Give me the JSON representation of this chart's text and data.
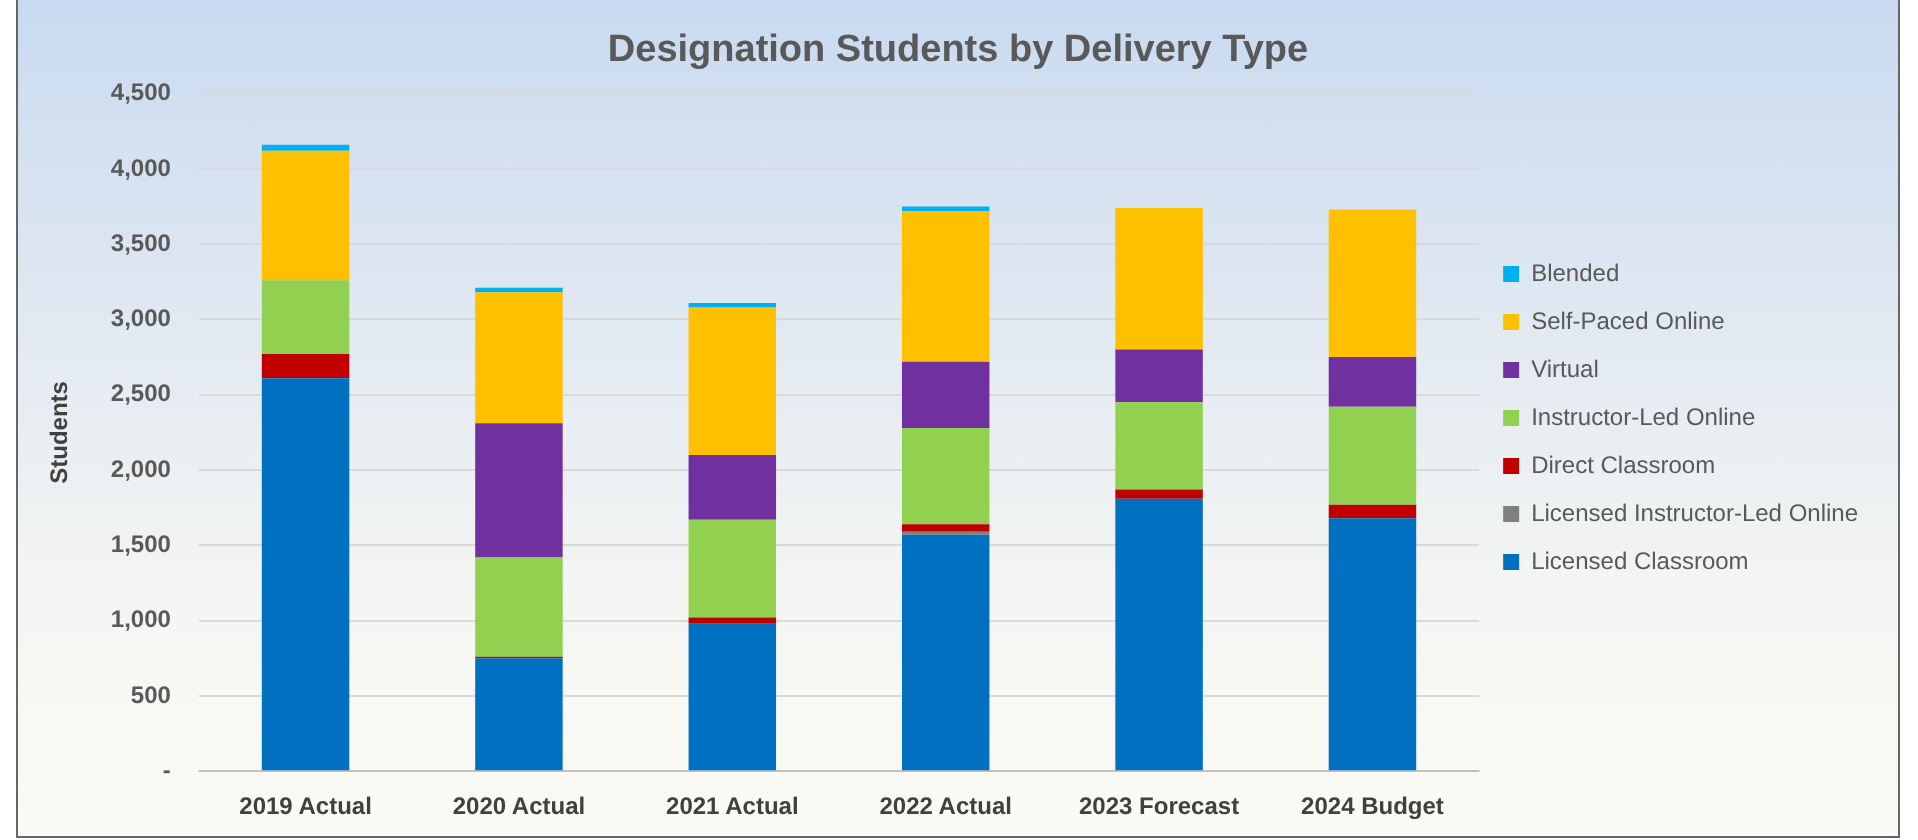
{
  "chart_data": {
    "type": "bar",
    "title": "Designation Students by Delivery Type",
    "ylabel": "Students",
    "stacked": true,
    "grid": "y",
    "legend": "right",
    "categories": [
      "2019 Actual",
      "2020 Actual",
      "2021 Actual",
      "2022 Actual",
      "2023 Forecast",
      "2024 Budget"
    ],
    "ylim": [
      0,
      4500
    ],
    "yticks": [
      {
        "value": 0,
        "label": "-"
      },
      500,
      {
        "value": 1000,
        "label": "1,000"
      },
      {
        "value": 1500,
        "label": "1,500"
      },
      {
        "value": 2000,
        "label": "2,000"
      },
      {
        "value": 2500,
        "label": "2,500"
      },
      {
        "value": 3000,
        "label": "3,000"
      },
      {
        "value": 3500,
        "label": "3,500"
      },
      {
        "value": 4000,
        "label": "4,000"
      },
      {
        "value": 4500,
        "label": "4,500"
      }
    ],
    "series": [
      {
        "name": "Licensed Classroom",
        "color": "#0070c0",
        "values": [
          2610,
          750,
          980,
          1570,
          1810,
          1680
        ]
      },
      {
        "name": "Licensed Instructor-Led Online",
        "color": "#808080",
        "values": [
          0,
          0,
          0,
          20,
          0,
          0
        ]
      },
      {
        "name": "Direct Classroom",
        "color": "#c00000",
        "values": [
          160,
          10,
          40,
          50,
          60,
          90
        ]
      },
      {
        "name": "Instructor-Led Online",
        "color": "#92d050",
        "values": [
          490,
          660,
          650,
          640,
          580,
          650
        ]
      },
      {
        "name": "Virtual",
        "color": "#7030a0",
        "values": [
          0,
          890,
          430,
          440,
          350,
          330
        ]
      },
      {
        "name": "Self-Paced Online",
        "color": "#ffc000",
        "values": [
          860,
          870,
          980,
          1000,
          940,
          980
        ]
      },
      {
        "name": "Blended",
        "color": "#00b0f0",
        "values": [
          40,
          30,
          30,
          30,
          0,
          0
        ]
      }
    ]
  }
}
